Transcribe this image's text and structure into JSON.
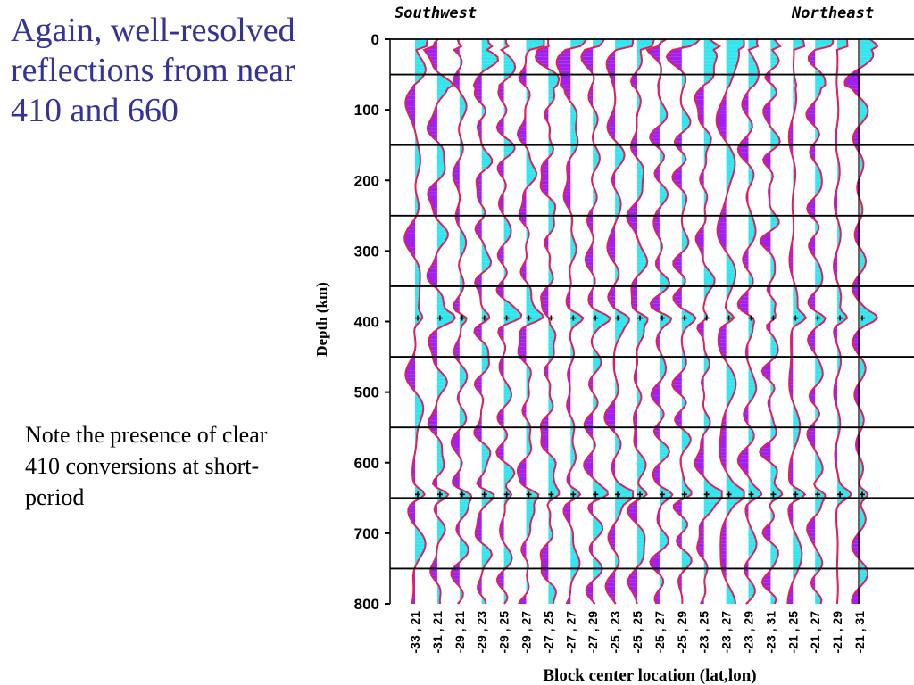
{
  "slide": {
    "title": "Again, well-resolved reflections from near 410 and 660",
    "note": "Note the presence of clear 410 conversions at short-period"
  },
  "chart_data": {
    "type": "line",
    "direction_left": "Southwest",
    "direction_right": "Northeast",
    "ylabel": "Depth (km)",
    "xlabel": "Block center location (lat,lon)",
    "yticks": [
      0,
      100,
      200,
      300,
      400,
      500,
      600,
      700,
      800
    ],
    "ylim": [
      0,
      800
    ],
    "y_inverted": true,
    "grid_depths": [
      50,
      150,
      250,
      350,
      450,
      550,
      650,
      750
    ],
    "categories": [
      "-33 , 21",
      "-31 , 21",
      "-29 , 21",
      "-29 , 23",
      "-29 , 25",
      "-29 , 27",
      "-27 , 25",
      "-27 , 27",
      "-27 , 29",
      "-25 , 23",
      "-25 , 25",
      "-25 , 27",
      "-25 , 29",
      "-23 , 25",
      "-23 , 27",
      "-23 , 29",
      "-23 , 31",
      "-21 , 25",
      "-21 , 27",
      "-21 , 29",
      "-21 , 31"
    ],
    "marker_410_depth": 395,
    "marker_660_depth": 645,
    "positive_fill_color": "#33e5ee",
    "negative_fill_color": "#a020f0",
    "trace_color": "#e0205a"
  }
}
